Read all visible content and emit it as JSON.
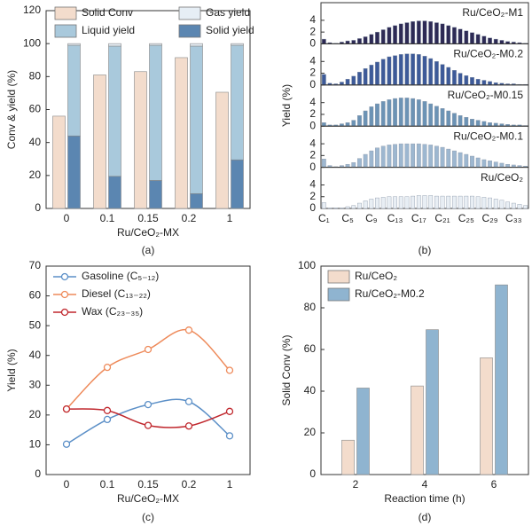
{
  "chart_data": [
    {
      "type": "bar",
      "label": "(a)",
      "xlabel": "Ru/CeO₂-MX",
      "ylabel": "Conv & yield (%)",
      "categories": [
        "0",
        "0.1",
        "0.15",
        "0.2",
        "1"
      ],
      "ylim": [
        0,
        120
      ],
      "yticks": [
        0,
        20,
        40,
        60,
        80,
        100,
        120
      ],
      "legend": "top",
      "series": [
        {
          "name": "Solid Conv",
          "color": "#f3dccc",
          "stacked": false,
          "values": [
            56,
            81,
            83,
            91.5,
            70.5
          ]
        },
        {
          "name": "Gas yield",
          "color": "#e6eef5",
          "stacked": true,
          "values": [
            1,
            1.5,
            1,
            1.5,
            1
          ]
        },
        {
          "name": "Liquid yield",
          "color": "#a9c9dc",
          "stacked": true,
          "values": [
            55,
            79,
            82,
            89.5,
            69.5
          ]
        },
        {
          "name": "Solid yield",
          "color": "#5b86b1",
          "stacked": true,
          "values": [
            44,
            19.5,
            17,
            9,
            29.5
          ]
        }
      ]
    },
    {
      "type": "rowbar",
      "label": "(b)",
      "ylabel": "Yield (%)",
      "categories": [
        "C₁",
        null,
        null,
        null,
        "C₅",
        null,
        null,
        null,
        "C₉",
        null,
        null,
        null,
        "C₁₃",
        null,
        null,
        null,
        "C₁₇",
        null,
        null,
        null,
        "C₂₁",
        null,
        null,
        null,
        "C₂₅",
        null,
        null,
        null,
        "C₂₉",
        null,
        null,
        null,
        "C₃₃",
        null,
        null
      ],
      "ylim": [
        0,
        7
      ],
      "yticks": [
        0,
        2,
        4
      ],
      "series": [
        {
          "name": "Ru/CeO₂-M1",
          "color": "#2d2a55",
          "values": [
            0.8,
            0.2,
            0.1,
            0.3,
            0.5,
            0.6,
            0.9,
            1.2,
            1.6,
            2.0,
            2.4,
            2.8,
            3.1,
            3.4,
            3.6,
            3.8,
            3.9,
            3.9,
            3.8,
            3.6,
            3.4,
            3.1,
            2.8,
            2.5,
            2.2,
            1.9,
            1.6,
            1.3,
            1.0,
            0.8,
            0.6,
            0.4,
            0.3,
            0.2,
            0.1
          ]
        },
        {
          "name": "Ru/CeO₂-M0.2",
          "color": "#3d5a99",
          "values": [
            1.8,
            0.3,
            0.2,
            0.5,
            1.0,
            1.5,
            2.2,
            2.8,
            3.4,
            3.9,
            4.4,
            4.8,
            5.0,
            5.2,
            5.3,
            5.3,
            5.2,
            4.9,
            4.5,
            4.0,
            3.5,
            3.0,
            2.5,
            2.0,
            1.6,
            1.3,
            1.0,
            0.8,
            0.6,
            0.4,
            0.3,
            0.2,
            0.2,
            0.1,
            0.1
          ]
        },
        {
          "name": "Ru/CeO₂-M0.15",
          "color": "#6c93b5",
          "values": [
            0.6,
            0.2,
            0.2,
            0.4,
            0.6,
            1.0,
            1.8,
            2.6,
            3.3,
            3.8,
            4.2,
            4.5,
            4.7,
            4.8,
            4.8,
            4.7,
            4.5,
            4.2,
            3.8,
            3.4,
            3.0,
            2.6,
            2.2,
            1.8,
            1.5,
            1.2,
            1.0,
            0.8,
            0.6,
            0.5,
            0.4,
            0.3,
            0.2,
            0.2,
            0.1
          ]
        },
        {
          "name": "Ru/CeO₂-M0.1",
          "color": "#9db7d0",
          "values": [
            1.4,
            0.3,
            0.1,
            0.3,
            0.5,
            0.8,
            1.5,
            2.2,
            2.8,
            3.3,
            3.6,
            3.8,
            3.9,
            4.0,
            4.0,
            4.0,
            4.0,
            3.9,
            3.8,
            3.6,
            3.4,
            3.1,
            2.8,
            2.5,
            2.2,
            1.9,
            1.6,
            1.3,
            1.1,
            0.9,
            0.7,
            0.5,
            0.4,
            0.3,
            0.2
          ]
        },
        {
          "name": "Ru/CeO₂",
          "color": "#e8eef4",
          "values": [
            1.0,
            0.1,
            0.1,
            0.1,
            0.3,
            0.5,
            0.9,
            1.3,
            1.6,
            1.8,
            1.9,
            2.0,
            2.0,
            2.0,
            2.0,
            2.1,
            2.2,
            2.2,
            2.2,
            2.1,
            2.1,
            2.1,
            2.1,
            2.1,
            2.1,
            2.1,
            2.0,
            1.9,
            1.8,
            1.6,
            1.4,
            1.1,
            0.9,
            0.7,
            0.5
          ]
        }
      ]
    },
    {
      "type": "line",
      "label": "(c)",
      "xlabel": "Ru/CeO₂-MX",
      "ylabel": "Yield (%)",
      "categories": [
        "0",
        "0.1",
        "0.15",
        "0.2",
        "1"
      ],
      "smooth": true,
      "ylim": [
        0,
        70
      ],
      "yticks": [
        0,
        10,
        20,
        30,
        40,
        50,
        60,
        70
      ],
      "legend": "top-left",
      "series": [
        {
          "name": "Gasoline (C₅₋₁₂)",
          "color": "#5b8fc7",
          "values": [
            10.2,
            18.5,
            23.5,
            24.5,
            13
          ]
        },
        {
          "name": "Diesel (C₁₃₋₂₂)",
          "color": "#ee8a5a",
          "values": [
            22,
            36,
            42,
            48.5,
            35
          ]
        },
        {
          "name": "Wax (C₂₃₋₃₅)",
          "color": "#c0272d",
          "values": [
            22,
            21.5,
            16.5,
            16.3,
            21.2
          ]
        }
      ]
    },
    {
      "type": "bar",
      "label": "(d)",
      "xlabel": "Reaction time (h)",
      "ylabel": "Solid Conv (%)",
      "categories": [
        "2",
        "4",
        "6"
      ],
      "ylim": [
        0,
        100
      ],
      "yticks": [
        0,
        20,
        40,
        60,
        80,
        100
      ],
      "legend": "top-left",
      "series": [
        {
          "name": "Ru/CeO₂",
          "color": "#f3dccc",
          "stacked": false,
          "values": [
            16.5,
            42.5,
            56
          ]
        },
        {
          "name": "Ru/CeO₂-M0.2",
          "color": "#8fb4d0",
          "stacked": false,
          "values": [
            41.5,
            69.5,
            91
          ]
        }
      ]
    }
  ]
}
